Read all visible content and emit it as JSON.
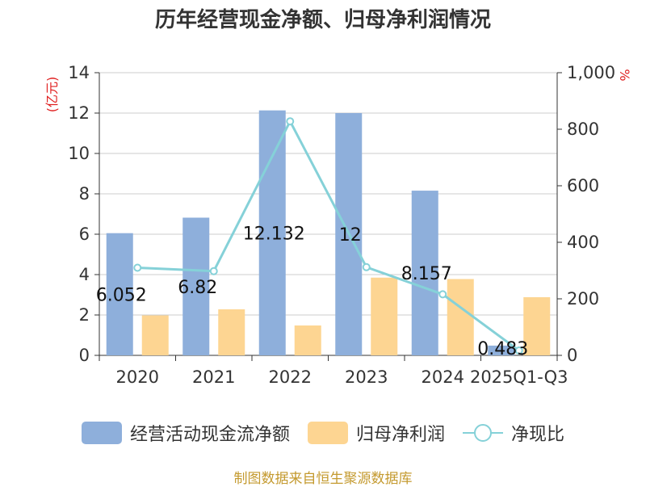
{
  "chart_data": {
    "type": "bar",
    "title": "历年经营现金净额、归母净利润情况",
    "categories": [
      "2020",
      "2021",
      "2022",
      "2023",
      "2024",
      "2025Q1-Q3"
    ],
    "series": [
      {
        "name": "经营活动现金流净额",
        "type": "bar",
        "axis": "left",
        "color": "#8eafdb",
        "values": [
          6.052,
          6.82,
          12.132,
          12,
          8.157,
          0.483
        ]
      },
      {
        "name": "归母净利润",
        "type": "bar",
        "axis": "left",
        "color": "#fdd592",
        "values": [
          1.98,
          2.28,
          1.48,
          3.85,
          3.78,
          2.88
        ]
      },
      {
        "name": "净现比",
        "type": "line",
        "axis": "right",
        "color": "#85d1d8",
        "values": [
          310,
          298,
          828,
          312,
          216,
          17
        ]
      }
    ],
    "data_labels": [
      "6.052",
      "6.82",
      "12.132",
      "12",
      "8.157",
      "0.483"
    ],
    "y_left": {
      "label": "(亿元)",
      "min": 0,
      "max": 14,
      "ticks": [
        0,
        2,
        4,
        6,
        8,
        10,
        12,
        14
      ]
    },
    "y_right": {
      "label": "%",
      "min": 0,
      "max": 1000,
      "ticks": [
        0,
        200,
        400,
        600,
        800,
        1000
      ],
      "tick_labels": [
        "0",
        "200",
        "400",
        "600",
        "800",
        "1,000"
      ]
    },
    "grid": true,
    "legend_position": "bottom"
  },
  "source_text": "制图数据来自恒生聚源数据库"
}
